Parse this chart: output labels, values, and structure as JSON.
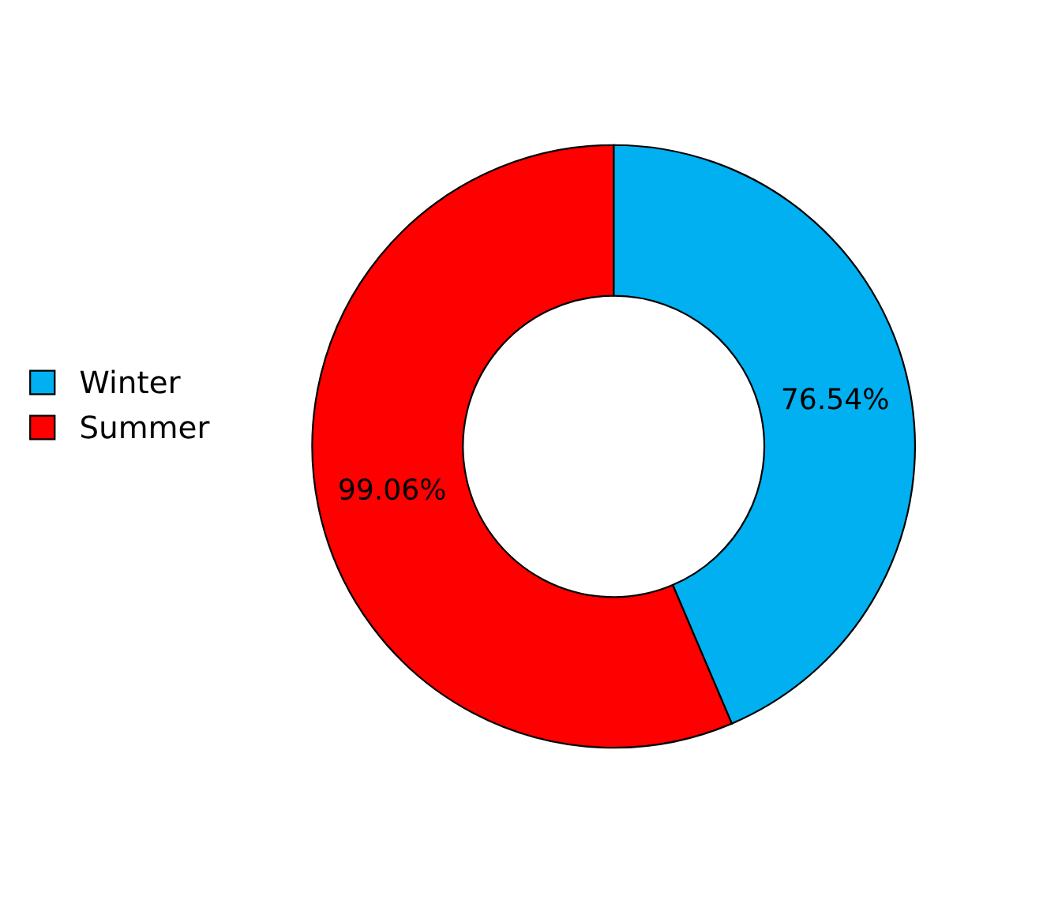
{
  "chart_data": {
    "type": "donut",
    "categories": [
      "Winter",
      "Summer"
    ],
    "values": [
      76.54,
      99.06
    ],
    "colors": [
      "#00b0f0",
      "#ff0000"
    ],
    "value_labels": [
      "76.54%",
      "99.06%"
    ],
    "legend": "left"
  }
}
